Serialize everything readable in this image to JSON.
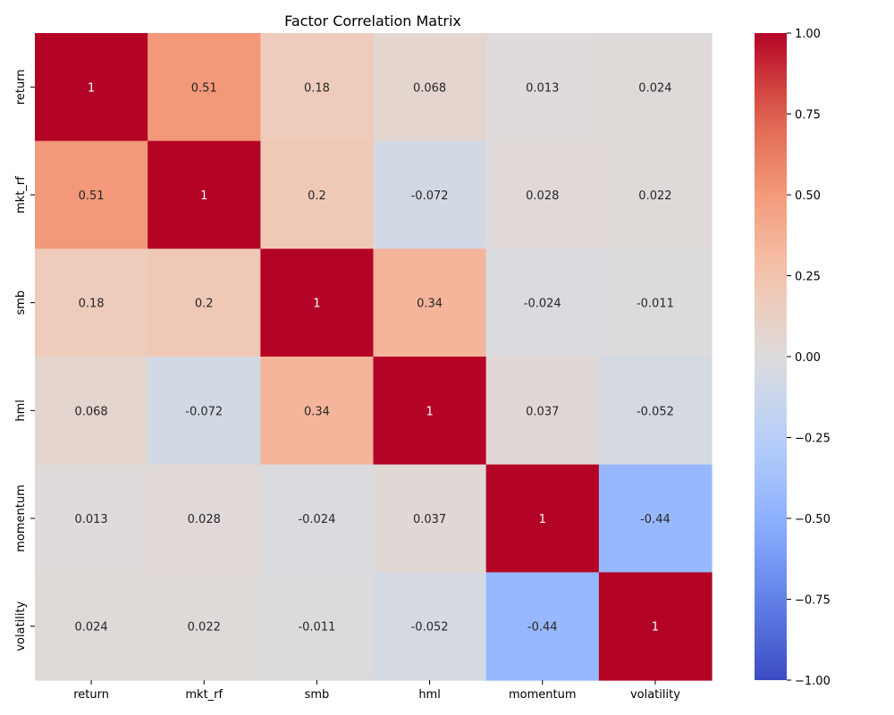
{
  "chart_data": {
    "type": "heatmap",
    "title": "Factor Correlation Matrix",
    "xlabel": "",
    "ylabel": "",
    "x_categories": [
      "return",
      "mkt_rf",
      "smb",
      "hml",
      "momentum",
      "volatility"
    ],
    "y_categories": [
      "return",
      "mkt_rf",
      "smb",
      "hml",
      "momentum",
      "volatility"
    ],
    "values": [
      [
        1,
        0.51,
        0.18,
        0.068,
        0.013,
        0.024
      ],
      [
        0.51,
        1,
        0.2,
        -0.072,
        0.028,
        0.022
      ],
      [
        0.18,
        0.2,
        1,
        0.34,
        -0.024,
        -0.011
      ],
      [
        0.068,
        -0.072,
        0.34,
        1,
        0.037,
        -0.052
      ],
      [
        0.013,
        0.028,
        -0.024,
        0.037,
        1,
        -0.44
      ],
      [
        0.024,
        0.022,
        -0.011,
        -0.052,
        -0.44,
        1
      ]
    ],
    "annotations": [
      [
        "1",
        "0.51",
        "0.18",
        "0.068",
        "0.013",
        "0.024"
      ],
      [
        "0.51",
        "1",
        "0.2",
        "-0.072",
        "0.028",
        "0.022"
      ],
      [
        "0.18",
        "0.2",
        "1",
        "0.34",
        "-0.024",
        "-0.011"
      ],
      [
        "0.068",
        "-0.072",
        "0.34",
        "1",
        "0.037",
        "-0.052"
      ],
      [
        "0.013",
        "0.028",
        "-0.024",
        "0.037",
        "1",
        "-0.44"
      ],
      [
        "0.024",
        "0.022",
        "-0.011",
        "-0.052",
        "-0.44",
        "1"
      ]
    ],
    "colorscale": "coolwarm",
    "vmin": -1,
    "vmax": 1,
    "colorbar_ticks": [
      1.0,
      0.75,
      0.5,
      0.25,
      0.0,
      -0.25,
      -0.5,
      -0.75,
      -1.0
    ],
    "colorbar_tick_labels": [
      "1.00",
      "0.75",
      "0.50",
      "0.25",
      "0.00",
      "−0.25",
      "−0.50",
      "−0.75",
      "−1.00"
    ],
    "grid": false,
    "legend": "colorbar-right"
  }
}
